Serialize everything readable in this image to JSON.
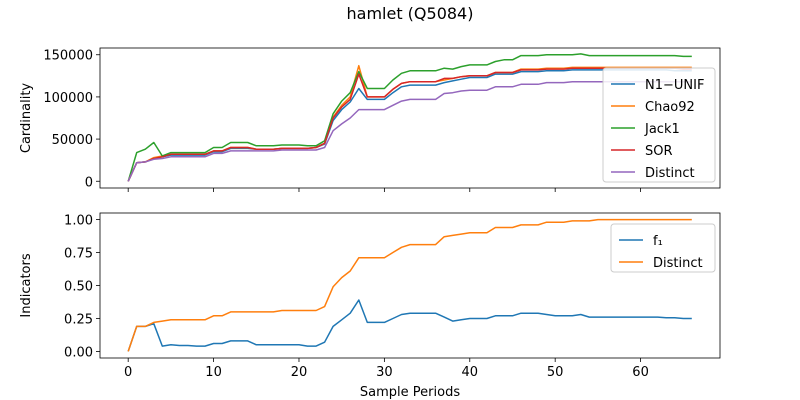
{
  "title": "hamlet (Q5084)",
  "xlabel": "Sample Periods",
  "chart_data": [
    {
      "type": "line",
      "ylabel": "Cardinality",
      "xlim": [
        -3.3,
        69.3
      ],
      "ylim": [
        -8000,
        158000
      ],
      "xticks": [
        0,
        10,
        20,
        30,
        40,
        50,
        60
      ],
      "yticks": [
        0,
        50000,
        100000,
        150000
      ],
      "ytick_labels": [
        "0",
        "50000",
        "100000",
        "150000"
      ],
      "legend_position": "center-right",
      "x": [
        0,
        1,
        2,
        3,
        4,
        5,
        6,
        7,
        8,
        9,
        10,
        11,
        12,
        13,
        14,
        15,
        16,
        17,
        18,
        19,
        20,
        21,
        22,
        23,
        24,
        25,
        26,
        27,
        28,
        29,
        30,
        31,
        32,
        33,
        34,
        35,
        36,
        37,
        38,
        39,
        40,
        41,
        42,
        43,
        44,
        45,
        46,
        47,
        48,
        49,
        50,
        51,
        52,
        53,
        54,
        55,
        56,
        57,
        58,
        59,
        60,
        61,
        62,
        63,
        64,
        65,
        66
      ],
      "series": [
        {
          "name": "N1−UNIF",
          "color": "#1f77b4",
          "values": [
            0,
            22000,
            23000,
            27000,
            29000,
            31000,
            31000,
            31000,
            31000,
            31000,
            35000,
            35000,
            39000,
            39000,
            39000,
            38000,
            38000,
            38000,
            39000,
            39000,
            39000,
            39000,
            40000,
            44000,
            72000,
            85000,
            94000,
            110000,
            97000,
            97000,
            97000,
            105000,
            112000,
            114000,
            114000,
            114000,
            114000,
            117000,
            119000,
            121000,
            123000,
            123000,
            123000,
            127000,
            127000,
            127000,
            130000,
            130000,
            130000,
            131000,
            131000,
            131000,
            132000,
            132000,
            132000,
            132000,
            132000,
            132000,
            132000,
            132000,
            132000,
            132000,
            132000,
            132000,
            131000,
            131000,
            131000
          ]
        },
        {
          "name": "Chao92",
          "color": "#ff7f0e",
          "values": [
            0,
            22000,
            23000,
            28000,
            30000,
            32000,
            32000,
            32000,
            32000,
            32000,
            36000,
            36000,
            40000,
            40000,
            40000,
            38000,
            38000,
            38000,
            39000,
            39000,
            39000,
            39000,
            40000,
            45000,
            76000,
            90000,
            100000,
            137000,
            100000,
            100000,
            100000,
            109000,
            116000,
            118000,
            118000,
            118000,
            118000,
            120000,
            122000,
            124000,
            125000,
            125000,
            125000,
            129000,
            129000,
            129000,
            133000,
            133000,
            133000,
            134000,
            134000,
            134000,
            135000,
            135000,
            135000,
            135000,
            135000,
            135000,
            135000,
            135000,
            135000,
            135000,
            135000,
            135000,
            135000,
            135000,
            135000
          ]
        },
        {
          "name": "Jack1",
          "color": "#2ca02c",
          "values": [
            0,
            34000,
            38000,
            46000,
            30000,
            34000,
            34000,
            34000,
            34000,
            34000,
            40000,
            40000,
            46000,
            46000,
            46000,
            42000,
            42000,
            42000,
            43000,
            43000,
            43000,
            42000,
            42000,
            48000,
            80000,
            95000,
            105000,
            130000,
            110000,
            110000,
            110000,
            120000,
            128000,
            131000,
            131000,
            131000,
            131000,
            134000,
            133000,
            136000,
            138000,
            138000,
            138000,
            142000,
            144000,
            144000,
            149000,
            149000,
            149000,
            150000,
            150000,
            150000,
            150000,
            151000,
            149000,
            149000,
            149000,
            149000,
            149000,
            149000,
            149000,
            149000,
            149000,
            149000,
            149000,
            148000,
            148000
          ]
        },
        {
          "name": "SOR",
          "color": "#d62728",
          "values": [
            0,
            22000,
            23000,
            27000,
            29000,
            32000,
            32000,
            32000,
            32000,
            32000,
            36000,
            36000,
            40000,
            40000,
            40000,
            38000,
            38000,
            38000,
            39000,
            39000,
            39000,
            39000,
            40000,
            45000,
            75000,
            88000,
            97000,
            127000,
            100000,
            100000,
            100000,
            109000,
            116000,
            118000,
            118000,
            118000,
            118000,
            122000,
            122000,
            124000,
            125000,
            125000,
            125000,
            129000,
            129000,
            129000,
            132000,
            132000,
            132000,
            133000,
            133000,
            133000,
            134000,
            134000,
            134000,
            134000,
            134000,
            134000,
            134000,
            134000,
            134000,
            134000,
            134000,
            134000,
            134000,
            133000,
            133000
          ]
        },
        {
          "name": "Distinct",
          "color": "#9467bd",
          "values": [
            0,
            22000,
            23000,
            26000,
            27000,
            29000,
            29000,
            29000,
            29000,
            29000,
            33000,
            33000,
            36000,
            36000,
            36000,
            36000,
            36000,
            36000,
            37000,
            37000,
            37000,
            37000,
            37000,
            40000,
            60000,
            68000,
            75000,
            85000,
            85000,
            85000,
            85000,
            90000,
            95000,
            97000,
            97000,
            97000,
            97000,
            104000,
            105000,
            107000,
            108000,
            108000,
            108000,
            112000,
            112000,
            112000,
            115000,
            115000,
            115000,
            117000,
            117000,
            117000,
            118000,
            118000,
            118000,
            118000,
            118000,
            118000,
            118000,
            118000,
            118000,
            118000,
            118000,
            118000,
            118000,
            118000,
            118000
          ]
        }
      ]
    },
    {
      "type": "line",
      "ylabel": "Indicators",
      "xlim": [
        -3.3,
        69.3
      ],
      "ylim": [
        -0.05,
        1.05
      ],
      "xticks": [
        0,
        10,
        20,
        30,
        40,
        50,
        60
      ],
      "yticks": [
        0.0,
        0.25,
        0.5,
        0.75,
        1.0
      ],
      "ytick_labels": [
        "0.00",
        "0.25",
        "0.50",
        "0.75",
        "1.00"
      ],
      "legend_position": "upper-right",
      "x": [
        0,
        1,
        2,
        3,
        4,
        5,
        6,
        7,
        8,
        9,
        10,
        11,
        12,
        13,
        14,
        15,
        16,
        17,
        18,
        19,
        20,
        21,
        22,
        23,
        24,
        25,
        26,
        27,
        28,
        29,
        30,
        31,
        32,
        33,
        34,
        35,
        36,
        37,
        38,
        39,
        40,
        41,
        42,
        43,
        44,
        45,
        46,
        47,
        48,
        49,
        50,
        51,
        52,
        53,
        54,
        55,
        56,
        57,
        58,
        59,
        60,
        61,
        62,
        63,
        64,
        65,
        66
      ],
      "series": [
        {
          "name": "f₁",
          "color": "#1f77b4",
          "values": [
            0,
            0.19,
            0.19,
            0.21,
            0.04,
            0.05,
            0.045,
            0.045,
            0.04,
            0.04,
            0.06,
            0.06,
            0.08,
            0.08,
            0.08,
            0.05,
            0.05,
            0.05,
            0.05,
            0.05,
            0.05,
            0.04,
            0.04,
            0.07,
            0.19,
            0.24,
            0.29,
            0.39,
            0.22,
            0.22,
            0.22,
            0.25,
            0.28,
            0.29,
            0.29,
            0.29,
            0.29,
            0.26,
            0.23,
            0.24,
            0.25,
            0.25,
            0.25,
            0.27,
            0.27,
            0.27,
            0.29,
            0.29,
            0.29,
            0.28,
            0.27,
            0.27,
            0.27,
            0.28,
            0.26,
            0.26,
            0.26,
            0.26,
            0.26,
            0.26,
            0.26,
            0.26,
            0.26,
            0.255,
            0.255,
            0.25,
            0.25
          ]
        },
        {
          "name": "Distinct",
          "color": "#ff7f0e",
          "values": [
            0,
            0.19,
            0.19,
            0.22,
            0.23,
            0.24,
            0.24,
            0.24,
            0.24,
            0.24,
            0.27,
            0.27,
            0.3,
            0.3,
            0.3,
            0.3,
            0.3,
            0.3,
            0.31,
            0.31,
            0.31,
            0.31,
            0.31,
            0.34,
            0.49,
            0.56,
            0.61,
            0.71,
            0.71,
            0.71,
            0.71,
            0.75,
            0.79,
            0.81,
            0.81,
            0.81,
            0.81,
            0.87,
            0.88,
            0.89,
            0.9,
            0.9,
            0.9,
            0.94,
            0.94,
            0.94,
            0.96,
            0.96,
            0.96,
            0.98,
            0.98,
            0.98,
            0.99,
            0.99,
            0.99,
            1.0,
            1.0,
            1.0,
            1.0,
            1.0,
            1.0,
            1.0,
            1.0,
            1.0,
            1.0,
            1.0,
            1.0
          ]
        }
      ]
    }
  ]
}
